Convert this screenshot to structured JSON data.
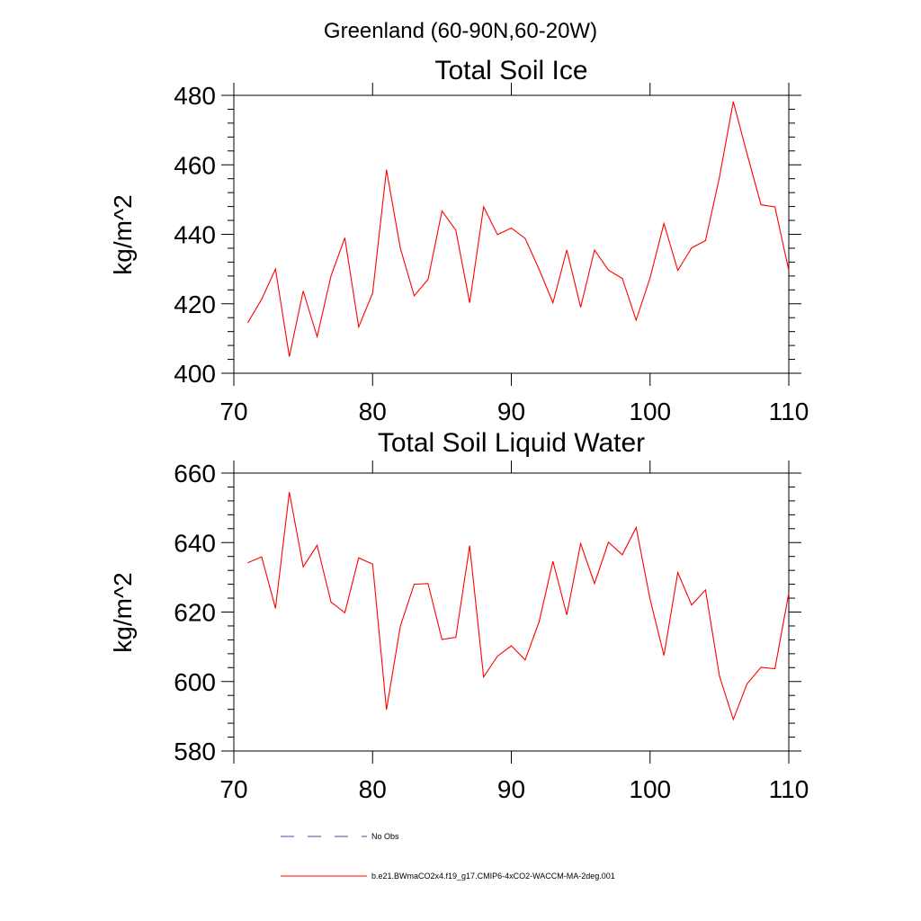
{
  "figure": {
    "title": "Greenland (60-90N,60-20W)"
  },
  "colors": {
    "series": "#ff0000",
    "obs": "#4a4aa0",
    "axis": "#000000"
  },
  "legend": {
    "items": [
      {
        "label": "No Obs",
        "style": "dashed",
        "color": "#4a4aa0"
      },
      {
        "label": "b.e21.BWmaCO2x4.f19_g17.CMIP6-4xCO2-WACCM-MA-2deg.001",
        "style": "solid",
        "color": "#ff0000"
      }
    ]
  },
  "chart_data": [
    {
      "type": "line",
      "title": "Total Soil Ice",
      "xlabel": "",
      "ylabel": "kg/m^2",
      "xlim": [
        70,
        110
      ],
      "ylim": [
        400,
        480
      ],
      "xticks": [
        70,
        80,
        90,
        100,
        110
      ],
      "yticks": [
        400,
        420,
        440,
        460,
        480
      ],
      "grid": false,
      "x": [
        71,
        72,
        73,
        74,
        75,
        76,
        77,
        78,
        79,
        80,
        81,
        82,
        83,
        84,
        85,
        86,
        87,
        88,
        89,
        90,
        91,
        92,
        93,
        94,
        95,
        96,
        97,
        98,
        99,
        100,
        101,
        102,
        103,
        104,
        105,
        106,
        107,
        108,
        109,
        110
      ],
      "series": [
        {
          "values": [
            414.5,
            421.3,
            430.0,
            404.8,
            423.7,
            410.5,
            428.0,
            439.0,
            413.3,
            423.1,
            458.6,
            436.0,
            422.3,
            427.0,
            446.7,
            441.2,
            420.3,
            447.9,
            439.9,
            441.8,
            438.8,
            429.9,
            420.3,
            435.5,
            419.0,
            435.5,
            429.7,
            427.3,
            415.3,
            427.5,
            443.1,
            429.6,
            436.1,
            438.2,
            456.4,
            478.2,
            463.1,
            448.5,
            447.9,
            429.6
          ]
        }
      ]
    },
    {
      "type": "line",
      "title": "Total Soil Liquid Water",
      "xlabel": "",
      "ylabel": "kg/m^2",
      "xlim": [
        70,
        110
      ],
      "ylim": [
        580,
        660
      ],
      "xticks": [
        70,
        80,
        90,
        100,
        110
      ],
      "yticks": [
        580,
        600,
        620,
        640,
        660
      ],
      "grid": false,
      "x": [
        71,
        72,
        73,
        74,
        75,
        76,
        77,
        78,
        79,
        80,
        81,
        82,
        83,
        84,
        85,
        86,
        87,
        88,
        89,
        90,
        91,
        92,
        93,
        94,
        95,
        96,
        97,
        98,
        99,
        100,
        101,
        102,
        103,
        104,
        105,
        106,
        107,
        108,
        109,
        110
      ],
      "series": [
        {
          "values": [
            634.2,
            635.9,
            621.1,
            654.5,
            633.0,
            639.2,
            622.9,
            619.8,
            635.6,
            633.8,
            591.9,
            615.9,
            628.0,
            628.2,
            612.1,
            612.7,
            639.1,
            601.3,
            607.3,
            610.3,
            606.2,
            617.2,
            634.6,
            619.2,
            639.7,
            628.2,
            640.1,
            636.5,
            644.3,
            623.7,
            607.5,
            631.4,
            622.0,
            626.4,
            601.6,
            589.1,
            599.4,
            604.1,
            603.7,
            625.5
          ]
        }
      ]
    }
  ]
}
